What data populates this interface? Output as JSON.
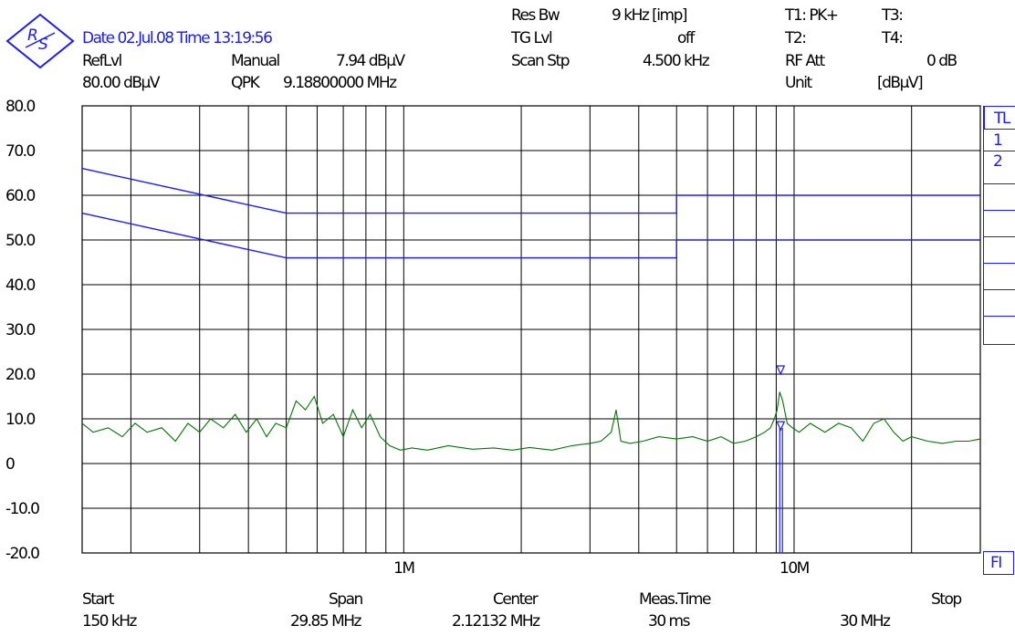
{
  "header": {
    "date_time": "Date 02.Jul.08 Time 13:19:56",
    "ref_lvl_label": "RefLvl",
    "ref_lvl_value": "80.00 dBµV",
    "marker_mode": "Manual",
    "marker_level": "7.94 dBµV",
    "marker_type": "QPK",
    "marker_freq": "9.18800000 MHz",
    "res_bw_label": "Res Bw",
    "res_bw_value": "9 kHz [imp]",
    "tg_lvl_label": "TG Lvl",
    "tg_lvl_value": "off",
    "scan_stp_label": "Scan Stp",
    "scan_stp_value": "4.500 kHz",
    "t1": "T1: PK+",
    "t2": "T2:",
    "t3": "T3:",
    "t4": "T4:",
    "rf_att_label": "RF Att",
    "rf_att_value": "0 dB",
    "unit_label": "Unit",
    "unit_value": "[dBµV]"
  },
  "side_tabs": {
    "tl": "TL",
    "one": "1",
    "two": "2",
    "fi": "FI"
  },
  "footer": {
    "start_label": "Start",
    "start_value": "150 kHz",
    "span_label": "Span",
    "span_value": "29.85 MHz",
    "center_label": "Center",
    "center_value": "2.12132 MHz",
    "meas_time_label": "Meas.Time",
    "meas_time_value": "30 ms",
    "stop_label": "Stop",
    "stop_value": "30 MHz"
  },
  "colors": {
    "trace": "#007700",
    "limit": "#1a1aff",
    "grid": "#000000",
    "text_blue": "#1a1aff"
  },
  "icon": "rohde-schwarz-logo-icon",
  "chart_data": {
    "type": "line",
    "x_scale": "log",
    "x_unit": "Hz",
    "xlim": [
      150000,
      30000000
    ],
    "ylim": [
      -20,
      80
    ],
    "ylabel": "dBµV",
    "yticks": [
      80,
      70,
      60,
      50,
      40,
      30,
      20,
      10,
      0,
      -10,
      -20
    ],
    "ytick_labels": [
      "80.0",
      "70.0",
      "60.0",
      "50.0",
      "40.0",
      "30.0",
      "20.0",
      "10.0",
      "0",
      "-10.0",
      "-20.0"
    ],
    "xtick_labels": [
      {
        "x": 1000000,
        "label": "1M"
      },
      {
        "x": 10000000,
        "label": "10M"
      }
    ],
    "marker": {
      "freq": 9188000,
      "level": 7.94
    },
    "series": [
      {
        "name": "1",
        "kind": "limit",
        "x": [
          150000,
          500000,
          500000,
          5000000,
          5000000,
          30000000
        ],
        "y": [
          66,
          56,
          56,
          56,
          60,
          60
        ]
      },
      {
        "name": "2",
        "kind": "limit",
        "x": [
          150000,
          500000,
          500000,
          5000000,
          5000000,
          30000000
        ],
        "y": [
          56,
          46,
          46,
          46,
          50,
          50
        ]
      },
      {
        "kind": "trace",
        "x": [
          150000,
          160000,
          175000,
          190000,
          205000,
          220000,
          240000,
          260000,
          280000,
          300000,
          320000,
          345000,
          370000,
          395000,
          420000,
          445000,
          470000,
          500000,
          530000,
          560000,
          590000,
          620000,
          660000,
          700000,
          740000,
          780000,
          820000,
          870000,
          920000,
          980000,
          1050000,
          1150000,
          1300000,
          1500000,
          1700000,
          1900000,
          2100000,
          2400000,
          2700000,
          3000000,
          3200000,
          3400000,
          3500000,
          3600000,
          3800000,
          4100000,
          4500000,
          5000000,
          5500000,
          6000000,
          6500000,
          7000000,
          7500000,
          8000000,
          8400000,
          8700000,
          8900000,
          9050000,
          9188000,
          9350000,
          9600000,
          9900000,
          10300000,
          11000000,
          12000000,
          13000000,
          14000000,
          15000000,
          16000000,
          17000000,
          18000000,
          19000000,
          20000000,
          22000000,
          24000000,
          26000000,
          28000000,
          30000000
        ],
        "y": [
          9,
          7,
          8,
          6,
          9,
          7,
          8,
          5,
          9,
          7,
          10,
          8,
          11,
          7,
          10,
          6,
          9,
          8,
          14,
          12,
          15,
          9,
          11,
          6,
          12,
          8,
          11,
          6,
          4,
          3,
          3.5,
          3,
          4,
          3.2,
          3.5,
          3,
          3.6,
          3,
          4,
          4.5,
          5,
          7,
          12,
          5,
          4.5,
          5,
          6,
          5.5,
          6,
          5,
          6,
          4.5,
          5,
          6,
          7,
          8,
          10,
          12,
          16,
          14,
          9,
          8,
          7,
          9,
          7,
          9,
          8,
          5,
          9,
          10,
          7,
          5,
          6,
          5,
          4.5,
          5,
          5,
          5.5
        ]
      }
    ]
  }
}
